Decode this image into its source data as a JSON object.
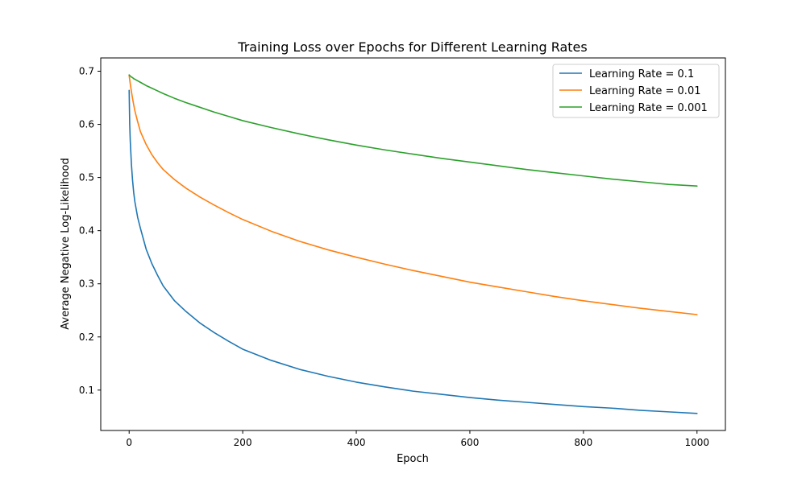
{
  "chart_data": {
    "type": "line",
    "title": "Training Loss over Epochs for Different Learning Rates",
    "xlabel": "Epoch",
    "ylabel": "Average Negative Log-Likelihood",
    "xlim": [
      -50,
      1050
    ],
    "ylim": [
      0.024,
      0.725
    ],
    "xticks": [
      0,
      200,
      400,
      600,
      800,
      1000
    ],
    "xtick_labels": [
      "0",
      "200",
      "400",
      "600",
      "800",
      "1000"
    ],
    "yticks": [
      0.1,
      0.2,
      0.3,
      0.4,
      0.5,
      0.6,
      0.7
    ],
    "ytick_labels": [
      "0.1",
      "0.2",
      "0.3",
      "0.4",
      "0.5",
      "0.6",
      "0.7"
    ],
    "grid": false,
    "legend_position": "top-right",
    "x": [
      0,
      1,
      2,
      4,
      6,
      8,
      10,
      15,
      20,
      30,
      40,
      50,
      60,
      80,
      100,
      125,
      150,
      175,
      200,
      250,
      300,
      350,
      400,
      450,
      500,
      550,
      600,
      650,
      700,
      750,
      800,
      850,
      900,
      950,
      1000
    ],
    "series": [
      {
        "name": "Learning Rate = 0.1",
        "color": "#1f77b4",
        "values": [
          0.664,
          0.6,
          0.568,
          0.525,
          0.495,
          0.472,
          0.455,
          0.425,
          0.404,
          0.365,
          0.338,
          0.316,
          0.296,
          0.268,
          0.248,
          0.226,
          0.208,
          0.192,
          0.177,
          0.156,
          0.139,
          0.126,
          0.115,
          0.106,
          0.098,
          0.092,
          0.086,
          0.081,
          0.077,
          0.073,
          0.069,
          0.066,
          0.062,
          0.059,
          0.056
        ]
      },
      {
        "name": "Learning Rate = 0.01",
        "color": "#ff7f0e",
        "values": [
          0.692,
          0.684,
          0.676,
          0.662,
          0.649,
          0.637,
          0.626,
          0.605,
          0.586,
          0.562,
          0.543,
          0.528,
          0.515,
          0.496,
          0.48,
          0.463,
          0.448,
          0.434,
          0.421,
          0.399,
          0.38,
          0.364,
          0.35,
          0.337,
          0.325,
          0.314,
          0.303,
          0.294,
          0.285,
          0.276,
          0.268,
          0.261,
          0.254,
          0.248,
          0.242
        ]
      },
      {
        "name": "Learning Rate = 0.001",
        "color": "#2ca02c",
        "values": [
          0.693,
          0.692,
          0.691,
          0.689,
          0.688,
          0.686,
          0.685,
          0.682,
          0.679,
          0.673,
          0.668,
          0.663,
          0.658,
          0.649,
          0.641,
          0.632,
          0.623,
          0.615,
          0.607,
          0.594,
          0.582,
          0.571,
          0.561,
          0.552,
          0.544,
          0.536,
          0.529,
          0.522,
          0.515,
          0.509,
          0.503,
          0.497,
          0.492,
          0.487,
          0.484
        ]
      }
    ]
  }
}
